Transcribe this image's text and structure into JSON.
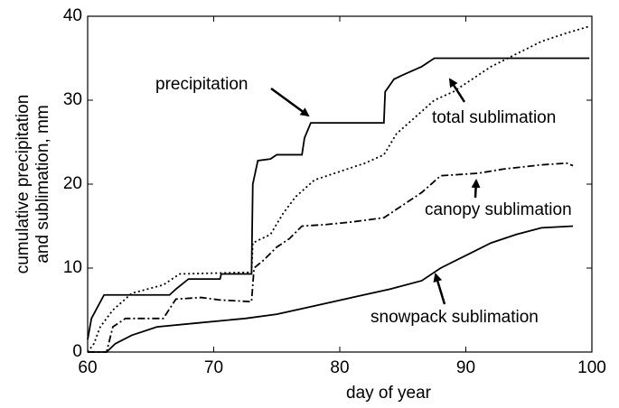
{
  "chart_data": {
    "type": "line",
    "x_label": "day of year",
    "y_label": [
      "cumulative precipitation",
      "and sublimation, mm"
    ],
    "xlim": [
      60,
      100
    ],
    "ylim": [
      0,
      40
    ],
    "xticks": [
      60,
      70,
      80,
      90,
      100
    ],
    "yticks": [
      0,
      10,
      20,
      30,
      40
    ],
    "grid": false,
    "series": [
      {
        "name": "precipitation",
        "color": "#000000",
        "style": "solid",
        "x": [
          60,
          60.3,
          61.3,
          66.5,
          67,
          68,
          70.5,
          70.6,
          73,
          73.1,
          73.5,
          74.5,
          75,
          77,
          77.2,
          77.7,
          83.5,
          83.6,
          84.3,
          85,
          86.5,
          87.5,
          99.8
        ],
        "values": [
          1.5,
          4,
          6.8,
          6.8,
          7.5,
          8.7,
          8.7,
          9.3,
          9.3,
          20,
          22.8,
          23,
          23.5,
          23.5,
          25.5,
          27.3,
          27.3,
          31,
          32.5,
          33,
          34,
          35,
          35
        ]
      },
      {
        "name": "total sublimation",
        "color": "#000000",
        "style": "dotted",
        "x": [
          60,
          60.5,
          61,
          62,
          63.5,
          66,
          67.3,
          73,
          73.1,
          74.5,
          75.5,
          76.5,
          78,
          80,
          82,
          83.5,
          84.5,
          86,
          87.5,
          89,
          90.5,
          92,
          94,
          96,
          98,
          99.8
        ],
        "values": [
          0,
          1,
          3,
          5,
          7,
          8,
          9.3,
          9.5,
          13,
          14,
          16.5,
          18.5,
          20.5,
          21.5,
          22.5,
          23.5,
          26,
          28,
          30,
          31,
          32.5,
          34,
          35.5,
          37,
          38,
          38.8
        ]
      },
      {
        "name": "canopy sublimation",
        "color": "#000000",
        "style": "dashdot",
        "x": [
          60,
          61.5,
          62,
          63,
          66,
          67,
          69,
          70.5,
          73,
          73.2,
          74,
          75,
          76,
          77,
          79,
          81,
          83.5,
          84.5,
          86.5,
          88,
          91,
          93,
          96,
          98,
          98.5
        ],
        "values": [
          0,
          0,
          3,
          4,
          4,
          6.3,
          6.5,
          6.2,
          6,
          10,
          11,
          12.5,
          13.5,
          15,
          15.2,
          15.5,
          16,
          17,
          19,
          21,
          21.3,
          21.8,
          22.3,
          22.5,
          22.2
        ]
      },
      {
        "name": "snowpack sublimation",
        "color": "#000000",
        "style": "solid",
        "x": [
          60,
          61.5,
          62.2,
          63.5,
          65.5,
          69,
          72.5,
          75,
          78,
          81,
          84,
          86.5,
          88,
          90,
          92,
          94,
          96,
          98.5
        ],
        "values": [
          0,
          0,
          1,
          2,
          3,
          3.5,
          4,
          4.5,
          5.5,
          6.5,
          7.5,
          8.5,
          10,
          11.5,
          13,
          14,
          14.8,
          15
        ]
      }
    ]
  }
}
